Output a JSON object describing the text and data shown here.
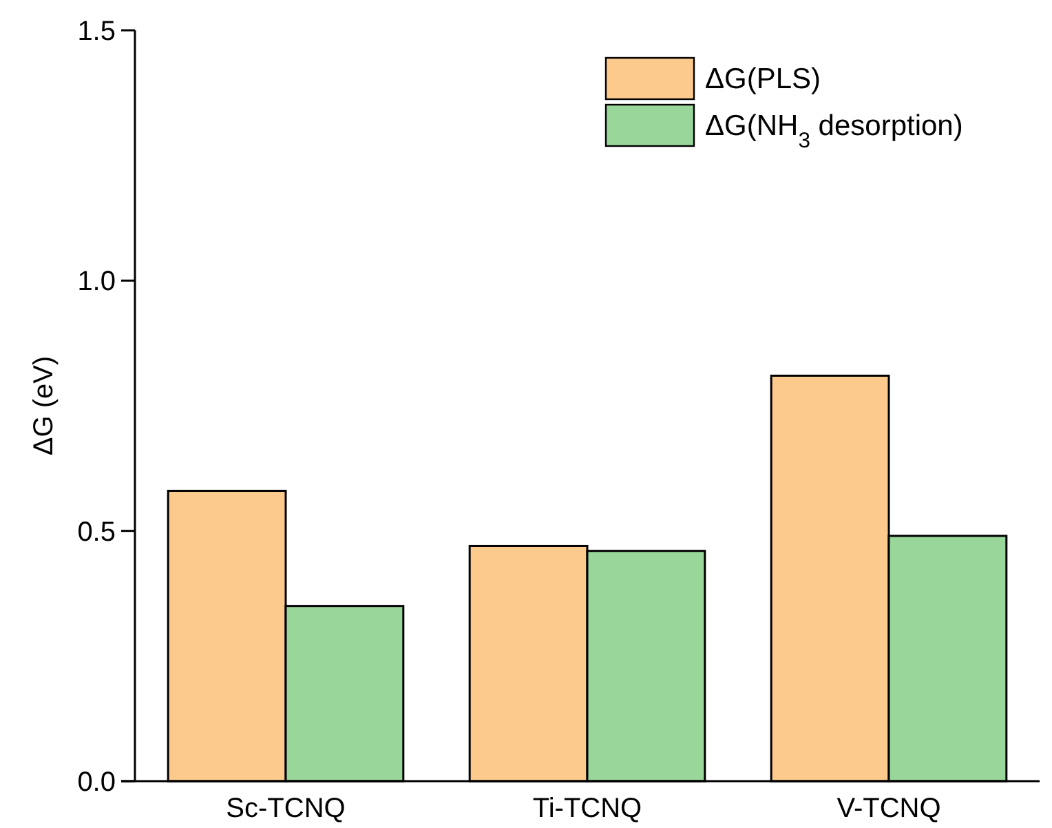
{
  "chart_data": {
    "type": "bar",
    "ylabel": "ΔG (eV)",
    "categories": [
      "Sc-TCNQ",
      "Ti-TCNQ",
      "V-TCNQ"
    ],
    "series": [
      {
        "name": "ΔG(PLS)",
        "color": "#fdca8e",
        "values": [
          0.58,
          0.47,
          0.81
        ]
      },
      {
        "name": "ΔG(NH$_{3}$ desorption)",
        "color": "#98d69a",
        "values": [
          0.35,
          0.46,
          0.49
        ]
      }
    ],
    "ylim": [
      0,
      1.5
    ],
    "yticks": [
      {
        "value": 0,
        "label": "0.0"
      },
      {
        "value": 0.5,
        "label": "0.5"
      },
      {
        "value": 1,
        "label": "1.0"
      },
      {
        "value": 1.5,
        "label": "1.5"
      }
    ],
    "legend": "top right"
  }
}
